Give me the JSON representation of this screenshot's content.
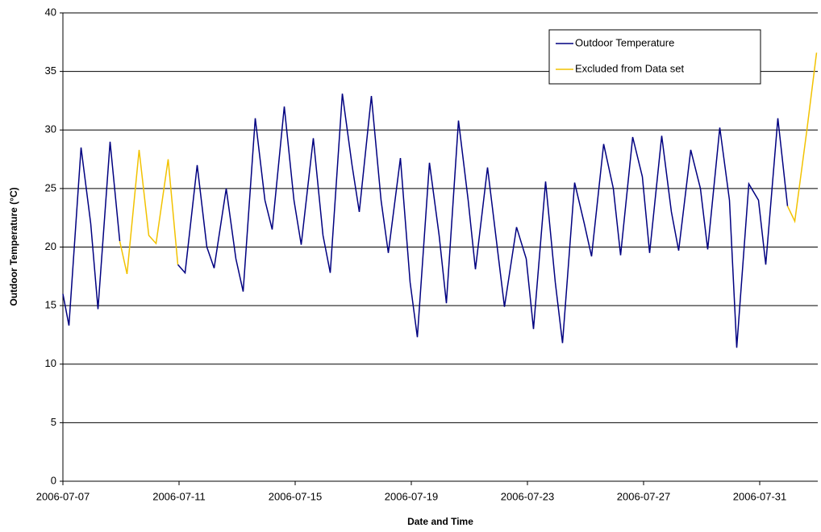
{
  "chart_data": {
    "type": "line",
    "x_label": "Date and Time",
    "y_label": "Outdoor Temperature (°C)",
    "x": [
      "2006-07-07 00:00",
      "2006-07-07 05:00",
      "2006-07-07 15:00",
      "2006-07-07 23:00",
      "2006-07-08 05:00",
      "2006-07-08 15:00",
      "2006-07-08 23:00",
      "2006-07-09 05:00",
      "2006-07-09 15:00",
      "2006-07-09 23:00",
      "2006-07-10 05:00",
      "2006-07-10 15:00",
      "2006-07-10 23:00",
      "2006-07-11 05:00",
      "2006-07-11 15:00",
      "2006-07-11 23:00",
      "2006-07-12 05:00",
      "2006-07-12 15:00",
      "2006-07-12 23:00",
      "2006-07-13 05:00",
      "2006-07-13 15:00",
      "2006-07-13 23:00",
      "2006-07-14 05:00",
      "2006-07-14 15:00",
      "2006-07-14 23:00",
      "2006-07-15 05:00",
      "2006-07-15 15:00",
      "2006-07-15 23:00",
      "2006-07-16 05:00",
      "2006-07-16 15:00",
      "2006-07-16 23:00",
      "2006-07-17 05:00",
      "2006-07-17 15:00",
      "2006-07-17 23:00",
      "2006-07-18 05:00",
      "2006-07-18 15:00",
      "2006-07-18 23:00",
      "2006-07-19 05:00",
      "2006-07-19 15:00",
      "2006-07-19 23:00",
      "2006-07-20 05:00",
      "2006-07-20 15:00",
      "2006-07-20 23:00",
      "2006-07-21 05:00",
      "2006-07-21 15:00",
      "2006-07-21 23:00",
      "2006-07-22 05:00",
      "2006-07-22 15:00",
      "2006-07-22 23:00",
      "2006-07-23 05:00",
      "2006-07-23 15:00",
      "2006-07-23 23:00",
      "2006-07-24 05:00",
      "2006-07-24 15:00",
      "2006-07-24 23:00",
      "2006-07-25 05:00",
      "2006-07-25 15:00",
      "2006-07-25 23:00",
      "2006-07-26 05:00",
      "2006-07-26 15:00",
      "2006-07-26 23:00",
      "2006-07-27 05:00",
      "2006-07-27 15:00",
      "2006-07-27 23:00",
      "2006-07-28 05:00",
      "2006-07-28 15:00",
      "2006-07-28 23:00",
      "2006-07-29 05:00",
      "2006-07-29 15:00",
      "2006-07-29 23:00",
      "2006-07-30 05:00",
      "2006-07-30 15:00",
      "2006-07-30 23:00",
      "2006-07-31 05:00",
      "2006-07-31 15:00",
      "2006-07-31 23:00",
      "2006-08-01 05:00",
      "2006-08-01 15:00",
      "2006-08-01 23:00"
    ],
    "series": [
      {
        "name": "Outdoor Temperature",
        "color": "#000080",
        "values": [
          16,
          13.3,
          28.5,
          22,
          14.7,
          29,
          20.5,
          null,
          null,
          null,
          null,
          null,
          18.5,
          17.8,
          27,
          20,
          18.2,
          25,
          19,
          16.2,
          31,
          24,
          21.5,
          32,
          24,
          20.2,
          29.3,
          21,
          17.8,
          33.1,
          27,
          23,
          32.9,
          24,
          19.5,
          27.6,
          17,
          12.3,
          27.2,
          21,
          15.2,
          30.8,
          24,
          18.1,
          26.8,
          20,
          14.9,
          21.7,
          19,
          13,
          25.6,
          17,
          11.8,
          25.5,
          22,
          19.2,
          28.8,
          25,
          19.3,
          29.4,
          26,
          19.5,
          29.5,
          23,
          19.7,
          28.3,
          25,
          19.8,
          30.2,
          24,
          11.4,
          25.4,
          24,
          18.5,
          31,
          23.5,
          null,
          null,
          null
        ]
      },
      {
        "name": "Excluded from Data set",
        "color": "#f2c200",
        "values": [
          null,
          null,
          null,
          null,
          null,
          null,
          20.5,
          17.7,
          28.3,
          21,
          20.3,
          27.5,
          18.5,
          null,
          null,
          null,
          null,
          null,
          null,
          null,
          null,
          null,
          null,
          null,
          null,
          null,
          null,
          null,
          null,
          null,
          null,
          null,
          null,
          null,
          null,
          null,
          null,
          null,
          null,
          null,
          null,
          null,
          null,
          null,
          null,
          null,
          null,
          null,
          null,
          null,
          null,
          null,
          null,
          null,
          null,
          null,
          null,
          null,
          null,
          null,
          null,
          null,
          null,
          null,
          null,
          null,
          null,
          null,
          null,
          null,
          null,
          null,
          null,
          null,
          null,
          23.5,
          22.2,
          30,
          36.6
        ]
      }
    ],
    "xlim": [
      "2006-07-07 00:00",
      "2006-08-02 00:00"
    ],
    "xticks": [
      "2006-07-07",
      "2006-07-11",
      "2006-07-15",
      "2006-07-19",
      "2006-07-23",
      "2006-07-27",
      "2006-07-31"
    ],
    "ylim": [
      0,
      40
    ],
    "yticks": [
      0,
      5,
      10,
      15,
      20,
      25,
      30,
      35,
      40
    ],
    "grid": true,
    "legend": "upper right"
  }
}
